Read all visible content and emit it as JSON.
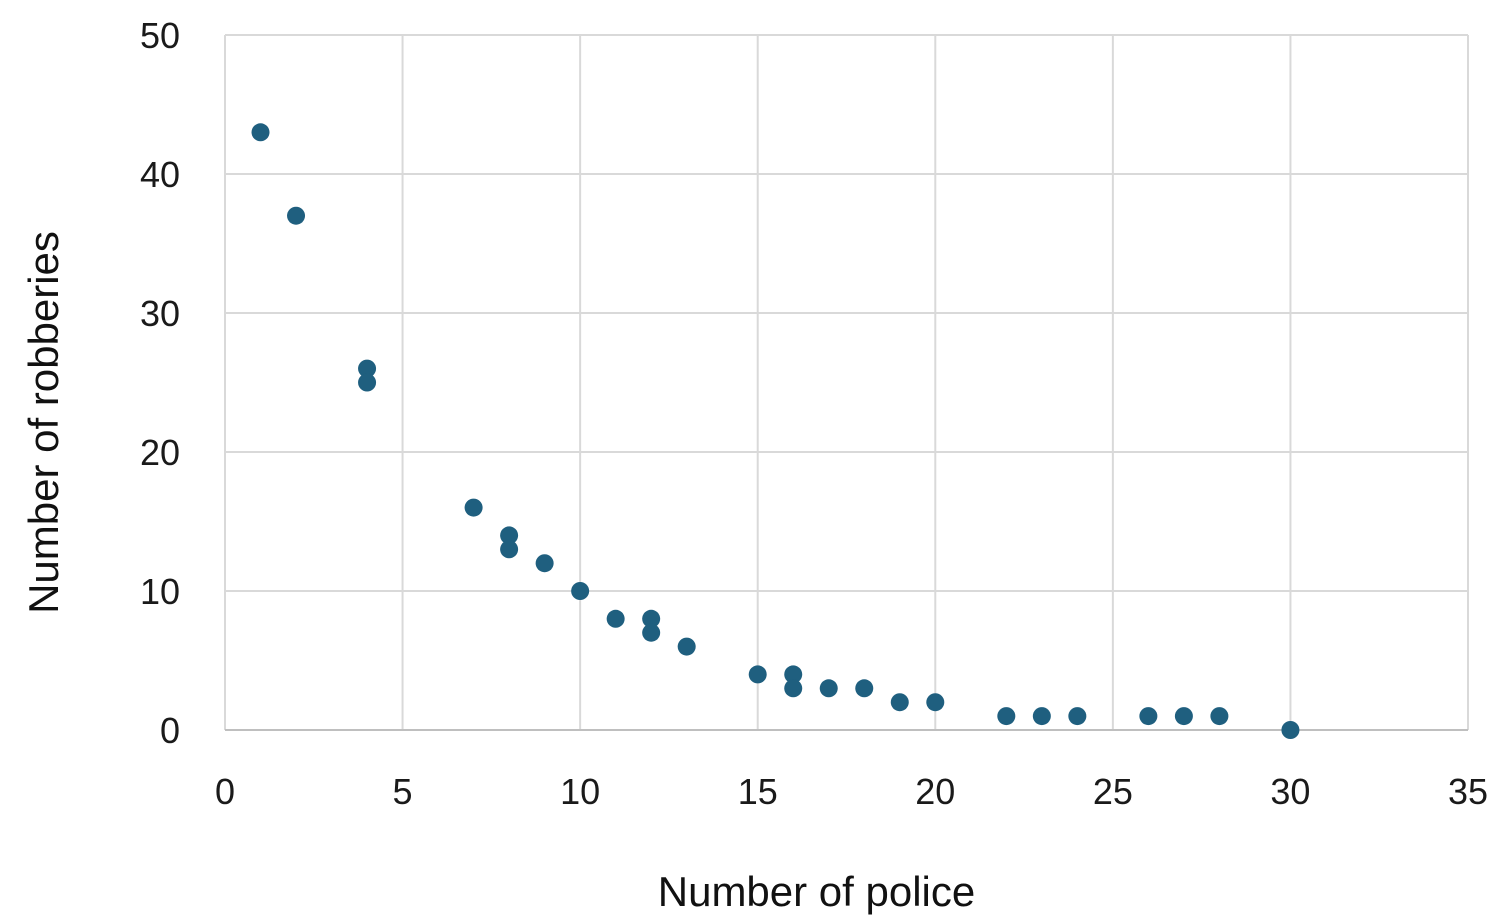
{
  "chart_data": {
    "type": "scatter",
    "title": "",
    "xlabel": "Number of police",
    "ylabel": "Number of robberies",
    "xlim": [
      0,
      35
    ],
    "ylim": [
      0,
      50
    ],
    "x_ticks": [
      0,
      5,
      10,
      15,
      20,
      25,
      30,
      35
    ],
    "y_ticks": [
      0,
      10,
      20,
      30,
      40,
      50
    ],
    "x_tick_labels": [
      "0",
      "5",
      "10",
      "15",
      "20",
      "25",
      "30",
      "35"
    ],
    "y_tick_labels": [
      "0",
      "10",
      "20",
      "30",
      "40",
      "50"
    ],
    "grid": true,
    "legend": "none",
    "marker_color": "#1f5f7f",
    "grid_color": "#d9d9d9",
    "points": [
      {
        "x": 1,
        "y": 43
      },
      {
        "x": 2,
        "y": 37
      },
      {
        "x": 4,
        "y": 26
      },
      {
        "x": 4,
        "y": 25
      },
      {
        "x": 7,
        "y": 16
      },
      {
        "x": 8,
        "y": 14
      },
      {
        "x": 8,
        "y": 13
      },
      {
        "x": 9,
        "y": 12
      },
      {
        "x": 10,
        "y": 10
      },
      {
        "x": 11,
        "y": 8
      },
      {
        "x": 12,
        "y": 8
      },
      {
        "x": 12,
        "y": 7
      },
      {
        "x": 13,
        "y": 6
      },
      {
        "x": 15,
        "y": 4
      },
      {
        "x": 16,
        "y": 4
      },
      {
        "x": 16,
        "y": 3
      },
      {
        "x": 17,
        "y": 3
      },
      {
        "x": 18,
        "y": 3
      },
      {
        "x": 19,
        "y": 2
      },
      {
        "x": 20,
        "y": 2
      },
      {
        "x": 22,
        "y": 1
      },
      {
        "x": 23,
        "y": 1
      },
      {
        "x": 24,
        "y": 1
      },
      {
        "x": 26,
        "y": 1
      },
      {
        "x": 27,
        "y": 1
      },
      {
        "x": 28,
        "y": 1
      },
      {
        "x": 30,
        "y": 0
      }
    ]
  }
}
